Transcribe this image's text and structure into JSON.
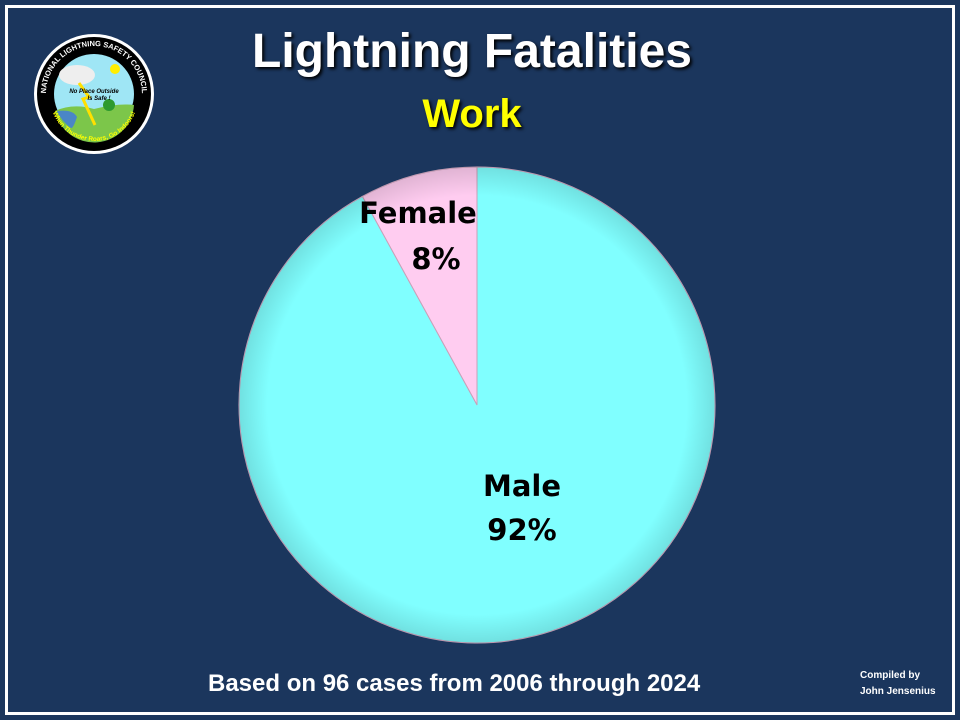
{
  "title": "Lightning Fatalities",
  "subtitle": "Work",
  "footer": "Based on 96 cases from 2006 through 2024",
  "credit": {
    "line1": "Compiled by",
    "line2": "John Jensenius"
  },
  "logo": {
    "ring_text_top": "NATIONAL LIGHTNING SAFETY COUNCIL",
    "ring_text_bottom": "When Thunder Roars, Go Indoors!",
    "inner_text": "No Place Outside Is Safe !"
  },
  "colors": {
    "background": "#1b365d",
    "male": "#80ffff",
    "female": "#ffccf0",
    "title": "#ffffff",
    "subtitle": "#ffff00"
  },
  "chart_data": {
    "type": "pie",
    "title": "Lightning Fatalities",
    "subtitle": "Work",
    "start_angle": "12 o'clock",
    "slices": [
      {
        "label": "Female",
        "value": 8,
        "display": "8%",
        "color": "#ffccf0"
      },
      {
        "label": "Male",
        "value": 92,
        "display": "92%",
        "color": "#80ffff"
      }
    ]
  }
}
